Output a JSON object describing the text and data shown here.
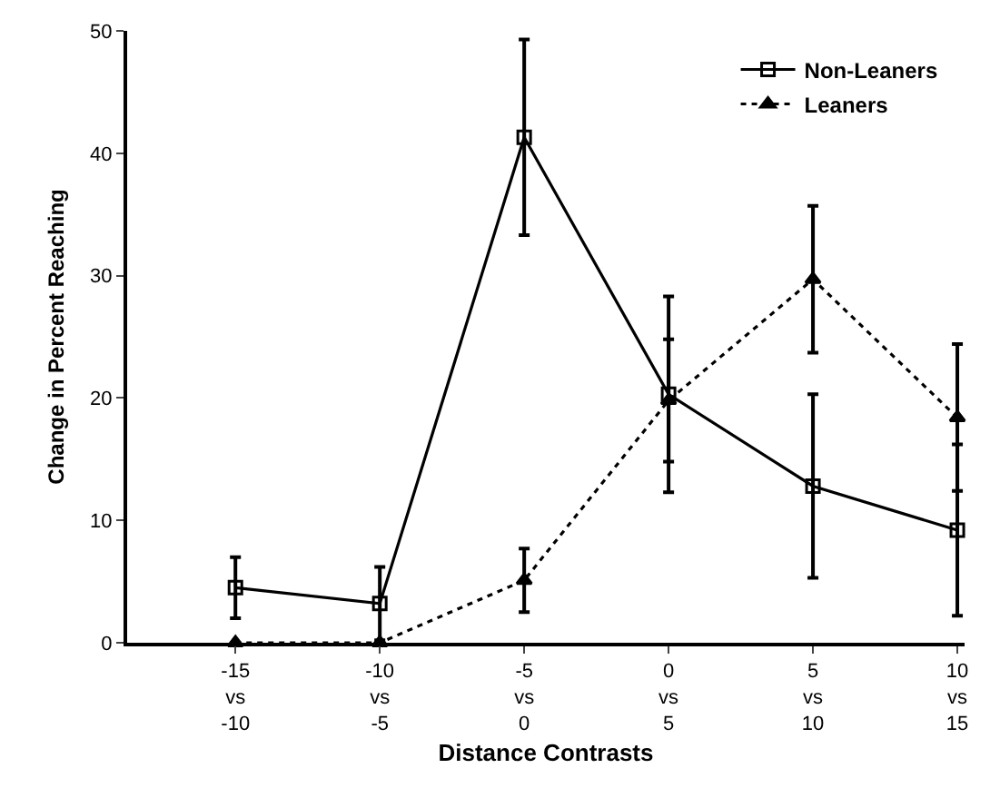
{
  "chart_data": {
    "type": "line",
    "xlabel": "Distance Contrasts",
    "ylabel": "Change in Percent Reaching",
    "categories": [
      "-15 vs -10",
      "-10 vs -5",
      "-5 vs 0",
      "0 vs 5",
      "5 vs 10",
      "10 vs 15"
    ],
    "series": [
      {
        "name": "Non-Leaners",
        "color": "#000000",
        "marker": "square",
        "line_style": "solid",
        "values": [
          4.5,
          3.2,
          41.3,
          20.3,
          12.8,
          9.2
        ],
        "errors": [
          2.5,
          3,
          8,
          8,
          7.5,
          7
        ]
      },
      {
        "name": "Leaners",
        "color": "#000000",
        "marker": "triangle",
        "line_style": "dotted",
        "values": [
          0,
          0,
          5.1,
          19.8,
          29.7,
          18.4
        ],
        "errors": [
          null,
          null,
          2.6,
          5,
          6,
          6
        ]
      }
    ],
    "ylim": [
      0,
      50
    ],
    "yticks": [
      0,
      10,
      20,
      30,
      40,
      50
    ],
    "grid": false,
    "legend": "top right"
  }
}
